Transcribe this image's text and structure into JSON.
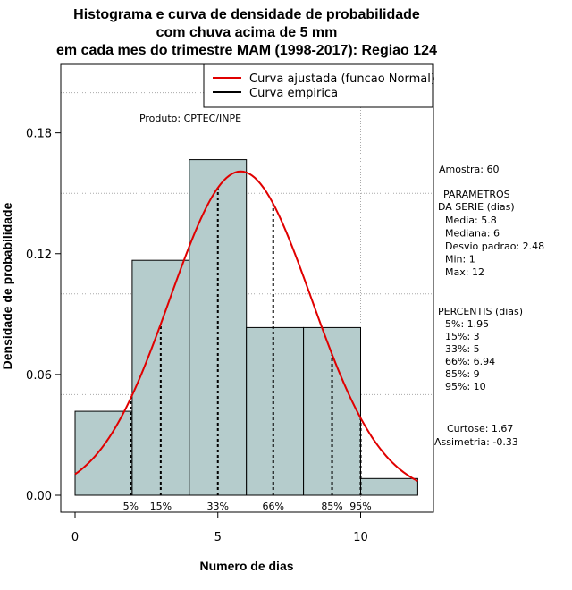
{
  "chart_data": {
    "type": "bar",
    "title_lines": [
      "Histograma e curva de densidade de probabilidade",
      "com chuva acima de 5 mm",
      "em cada mes do trimestre MAM (1998-2017): Regiao 124"
    ],
    "xlabel": "Numero de dias",
    "ylabel": "Densidade de probabilidade",
    "xlim": [
      -0.5,
      12.5
    ],
    "ylim": [
      -0.009,
      0.205
    ],
    "x_ticks": [
      0,
      5,
      10
    ],
    "x_tick_labels": [
      "0",
      "5",
      "10"
    ],
    "y_ticks": [
      0.0,
      0.06,
      0.12,
      0.18
    ],
    "y_tick_labels": [
      "0.00",
      "0.06",
      "0.12",
      "0.18"
    ],
    "grid_y": [
      0.05,
      0.1,
      0.15,
      0.2
    ],
    "grid_x": [
      10
    ],
    "bar_color": "#b5cccc",
    "bins": [
      {
        "x0": 0,
        "x1": 2,
        "value": 0.0417
      },
      {
        "x0": 2,
        "x1": 4,
        "value": 0.1167
      },
      {
        "x0": 4,
        "x1": 6,
        "value": 0.1667
      },
      {
        "x0": 6,
        "x1": 8,
        "value": 0.0833
      },
      {
        "x0": 8,
        "x1": 10,
        "value": 0.0833
      },
      {
        "x0": 10,
        "x1": 12,
        "value": 0.0083
      }
    ],
    "normal_curve": {
      "mean": 5.8,
      "sd": 2.48,
      "x_from": 0,
      "x_to": 12,
      "color": "#e00000"
    },
    "percentile_lines": [
      {
        "label": "5%",
        "x": 1.95
      },
      {
        "label": "15%",
        "x": 3
      },
      {
        "label": "33%",
        "x": 5
      },
      {
        "label": "66%",
        "x": 6.94
      },
      {
        "label": "85%",
        "x": 9
      },
      {
        "label": "95%",
        "x": 10
      }
    ],
    "legend": {
      "position": "top-right",
      "entries": [
        {
          "label": "Curva ajustada (funcao Normal)",
          "color": "#e00000"
        },
        {
          "label": "Curva empirica",
          "color": "#000000"
        }
      ]
    },
    "annotation": "Produto: CPTEC/INPE",
    "stats_panel": {
      "sample": "Amostra: 60",
      "params_title": [
        "PARAMETROS",
        "DA SERIE (dias)"
      ],
      "params": [
        "Media: 5.8",
        "Mediana: 6",
        "Desvio padrao: 2.48",
        "Min: 1",
        "Max: 12"
      ],
      "percentis_title": "PERCENTIS (dias)",
      "percentis": [
        "5%: 1.95",
        "15%: 3",
        "33%: 5",
        "66%: 6.94",
        "85%: 9",
        "95%: 10"
      ],
      "curtose": "Curtose: 1.67",
      "assimetria": "Assimetria: -0.33"
    }
  }
}
